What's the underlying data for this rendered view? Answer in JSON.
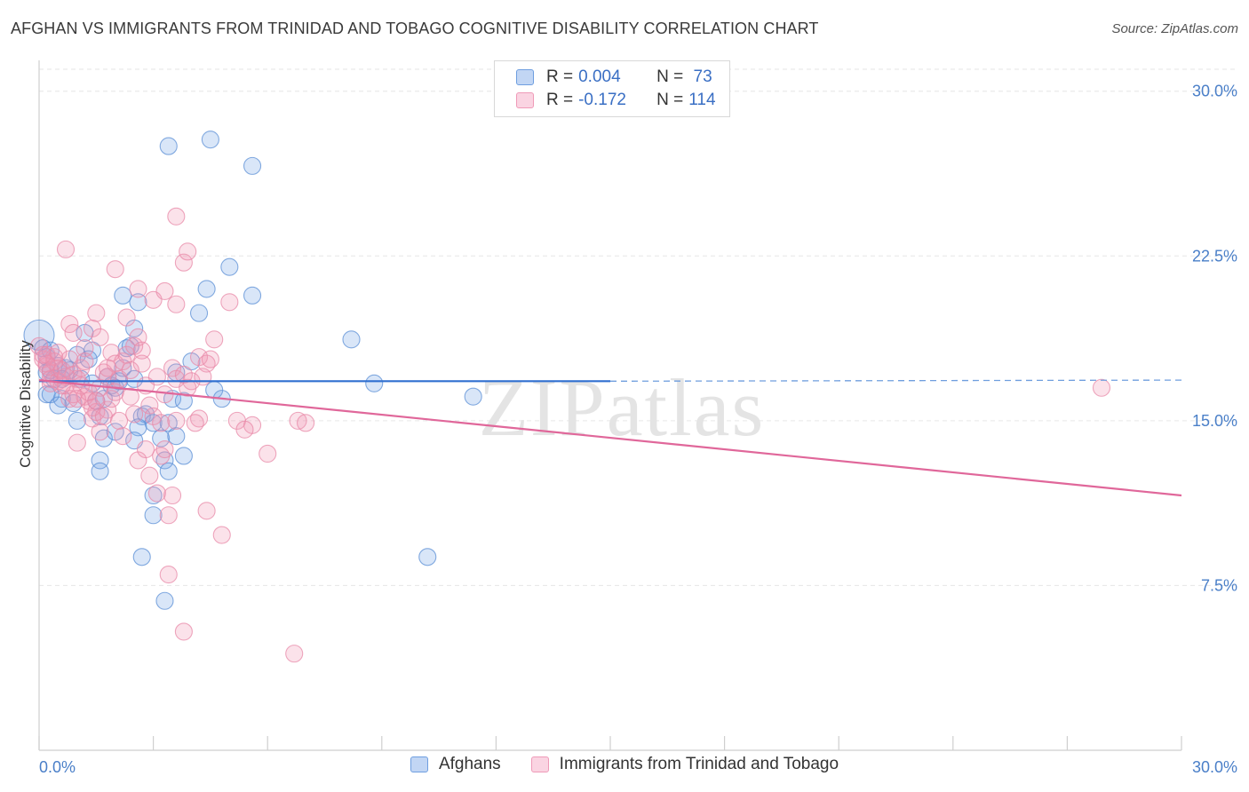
{
  "title": "AFGHAN VS IMMIGRANTS FROM TRINIDAD AND TOBAGO COGNITIVE DISABILITY CORRELATION CHART",
  "source": "Source: ZipAtlas.com",
  "watermark": "ZIPatlas",
  "legend_stats": [
    {
      "r_label": "R = ",
      "r_value": "0.004",
      "n_label": "N = ",
      "n_value": " 73",
      "color": "#5b8fd6"
    },
    {
      "r_label": "R = ",
      "r_value": "-0.172",
      "n_label": "N = ",
      "n_value": "114",
      "color": "#e889a8"
    }
  ],
  "chart_data": {
    "type": "scatter",
    "title": "AFGHAN VS IMMIGRANTS FROM TRINIDAD AND TOBAGO COGNITIVE DISABILITY CORRELATION CHART",
    "xlabel": "",
    "ylabel": "Cognitive Disability",
    "xlim": [
      0,
      30
    ],
    "ylim": [
      0,
      31
    ],
    "x_tick_labels": [
      "0.0%",
      "30.0%"
    ],
    "y_ticks": [
      {
        "value": 7.5,
        "label": "7.5%"
      },
      {
        "value": 15.0,
        "label": "15.0%"
      },
      {
        "value": 22.5,
        "label": "22.5%"
      },
      {
        "value": 30.0,
        "label": "30.0%"
      }
    ],
    "grid": "horizontal-dashed",
    "legend": "top-center",
    "series": [
      {
        "name": "Afghans",
        "color": "#5b8fd6",
        "fill": "rgba(120,165,230,0.28)",
        "trend": {
          "x0": 0.0,
          "y0": 16.8,
          "x1": 15.0,
          "y1": 16.8,
          "dashed_to_x": 30.0,
          "dashed_y": 16.85
        },
        "points": [
          [
            0.0,
            18.9
          ],
          [
            0.1,
            18.3
          ],
          [
            0.2,
            17.9
          ],
          [
            0.3,
            18.2
          ],
          [
            0.2,
            17.2
          ],
          [
            0.4,
            16.9
          ],
          [
            0.3,
            17.3
          ],
          [
            0.5,
            17.5
          ],
          [
            0.2,
            16.2
          ],
          [
            0.6,
            16.0
          ],
          [
            0.5,
            15.7
          ],
          [
            0.8,
            17.3
          ],
          [
            0.7,
            17.4
          ],
          [
            1.0,
            18.0
          ],
          [
            1.2,
            19.0
          ],
          [
            1.4,
            18.2
          ],
          [
            1.3,
            17.8
          ],
          [
            1.1,
            16.9
          ],
          [
            0.9,
            15.8
          ],
          [
            1.0,
            15.0
          ],
          [
            1.5,
            15.9
          ],
          [
            1.6,
            15.2
          ],
          [
            1.7,
            16.0
          ],
          [
            1.8,
            17.0
          ],
          [
            1.9,
            16.6
          ],
          [
            2.0,
            16.5
          ],
          [
            2.1,
            16.8
          ],
          [
            2.2,
            17.4
          ],
          [
            2.3,
            18.3
          ],
          [
            2.4,
            18.4
          ],
          [
            2.5,
            19.2
          ],
          [
            2.6,
            20.4
          ],
          [
            2.2,
            20.7
          ],
          [
            2.5,
            16.9
          ],
          [
            2.7,
            15.2
          ],
          [
            2.8,
            15.3
          ],
          [
            3.0,
            14.9
          ],
          [
            2.6,
            14.7
          ],
          [
            3.2,
            14.2
          ],
          [
            3.4,
            14.9
          ],
          [
            3.5,
            16.0
          ],
          [
            3.6,
            17.2
          ],
          [
            3.8,
            15.9
          ],
          [
            4.0,
            17.7
          ],
          [
            4.2,
            19.9
          ],
          [
            4.4,
            21.0
          ],
          [
            4.6,
            16.4
          ],
          [
            4.8,
            16.0
          ],
          [
            5.0,
            22.0
          ],
          [
            5.6,
            20.7
          ],
          [
            3.4,
            27.5
          ],
          [
            4.5,
            27.8
          ],
          [
            5.6,
            26.6
          ],
          [
            8.2,
            18.7
          ],
          [
            8.8,
            16.7
          ],
          [
            11.4,
            16.1
          ],
          [
            10.2,
            8.8
          ],
          [
            3.3,
            13.2
          ],
          [
            3.0,
            11.6
          ],
          [
            3.0,
            10.7
          ],
          [
            3.4,
            12.7
          ],
          [
            2.7,
            8.8
          ],
          [
            3.3,
            6.8
          ],
          [
            1.6,
            13.2
          ],
          [
            1.6,
            12.7
          ],
          [
            1.7,
            14.2
          ],
          [
            2.5,
            14.1
          ],
          [
            3.8,
            13.4
          ],
          [
            3.6,
            14.3
          ],
          [
            0.3,
            16.2
          ],
          [
            0.6,
            16.9
          ],
          [
            1.4,
            16.7
          ],
          [
            2.0,
            14.5
          ]
        ]
      },
      {
        "name": "Immigrants from Trinidad and Tobago",
        "color": "#e889a8",
        "fill": "rgba(240,150,180,0.28)",
        "trend": {
          "x0": 0.0,
          "y0": 16.85,
          "x1": 30.0,
          "y1": 11.6
        },
        "points": [
          [
            0.0,
            18.4
          ],
          [
            0.1,
            17.8
          ],
          [
            0.2,
            17.5
          ],
          [
            0.2,
            18.0
          ],
          [
            0.3,
            17.2
          ],
          [
            0.4,
            17.9
          ],
          [
            0.3,
            16.9
          ],
          [
            0.5,
            17.4
          ],
          [
            0.5,
            16.8
          ],
          [
            0.6,
            17.3
          ],
          [
            0.7,
            16.6
          ],
          [
            0.8,
            17.8
          ],
          [
            0.9,
            17.1
          ],
          [
            0.8,
            16.0
          ],
          [
            1.0,
            16.9
          ],
          [
            1.1,
            17.4
          ],
          [
            1.2,
            16.1
          ],
          [
            1.3,
            15.9
          ],
          [
            1.4,
            15.1
          ],
          [
            1.5,
            15.4
          ],
          [
            1.6,
            16.5
          ],
          [
            1.7,
            17.2
          ],
          [
            1.8,
            17.0
          ],
          [
            1.9,
            18.1
          ],
          [
            2.0,
            17.6
          ],
          [
            2.1,
            16.9
          ],
          [
            2.2,
            17.7
          ],
          [
            2.3,
            18.0
          ],
          [
            2.5,
            18.4
          ],
          [
            2.6,
            18.8
          ],
          [
            2.7,
            17.6
          ],
          [
            2.8,
            16.6
          ],
          [
            2.9,
            15.7
          ],
          [
            3.0,
            15.2
          ],
          [
            3.2,
            14.9
          ],
          [
            3.3,
            16.2
          ],
          [
            3.5,
            17.4
          ],
          [
            3.6,
            16.9
          ],
          [
            3.8,
            17.1
          ],
          [
            4.0,
            16.8
          ],
          [
            4.2,
            17.9
          ],
          [
            4.4,
            17.6
          ],
          [
            4.6,
            18.7
          ],
          [
            5.0,
            20.4
          ],
          [
            5.2,
            15.0
          ],
          [
            5.6,
            14.8
          ],
          [
            6.0,
            13.5
          ],
          [
            6.8,
            15.0
          ],
          [
            7.0,
            14.9
          ],
          [
            4.3,
            17.0
          ],
          [
            0.7,
            22.8
          ],
          [
            2.0,
            21.9
          ],
          [
            2.6,
            21.0
          ],
          [
            3.0,
            20.5
          ],
          [
            3.3,
            20.9
          ],
          [
            3.6,
            20.3
          ],
          [
            3.8,
            22.2
          ],
          [
            3.6,
            24.3
          ],
          [
            3.9,
            22.7
          ],
          [
            2.3,
            19.7
          ],
          [
            1.5,
            19.9
          ],
          [
            1.4,
            19.2
          ],
          [
            1.6,
            18.8
          ],
          [
            0.8,
            19.4
          ],
          [
            0.9,
            19.0
          ],
          [
            1.2,
            18.3
          ],
          [
            1.0,
            14.0
          ],
          [
            1.4,
            15.6
          ],
          [
            1.6,
            14.5
          ],
          [
            2.2,
            14.3
          ],
          [
            2.5,
            15.3
          ],
          [
            2.6,
            13.2
          ],
          [
            2.8,
            13.7
          ],
          [
            2.9,
            12.5
          ],
          [
            3.1,
            11.7
          ],
          [
            3.2,
            13.4
          ],
          [
            3.3,
            13.7
          ],
          [
            3.5,
            11.6
          ],
          [
            3.4,
            10.7
          ],
          [
            3.4,
            8.0
          ],
          [
            3.8,
            5.4
          ],
          [
            4.4,
            10.9
          ],
          [
            4.8,
            9.8
          ],
          [
            5.4,
            14.6
          ],
          [
            6.7,
            4.4
          ],
          [
            3.6,
            15.0
          ],
          [
            4.2,
            15.1
          ],
          [
            4.5,
            17.8
          ],
          [
            2.4,
            16.1
          ],
          [
            1.8,
            15.5
          ],
          [
            1.9,
            16.0
          ],
          [
            1.7,
            15.2
          ],
          [
            1.3,
            16.3
          ],
          [
            1.1,
            16.6
          ],
          [
            0.9,
            16.2
          ],
          [
            0.6,
            16.6
          ],
          [
            0.4,
            17.7
          ],
          [
            0.2,
            17.6
          ],
          [
            0.1,
            18.0
          ],
          [
            0.3,
            16.7
          ],
          [
            27.9,
            16.5
          ],
          [
            2.1,
            15.0
          ],
          [
            2.4,
            17.3
          ],
          [
            3.1,
            17.0
          ],
          [
            1.8,
            17.4
          ],
          [
            0.7,
            17.0
          ],
          [
            0.5,
            18.1
          ],
          [
            1.2,
            17.7
          ],
          [
            2.7,
            18.2
          ],
          [
            3.9,
            16.5
          ],
          [
            4.1,
            14.9
          ],
          [
            2.0,
            16.3
          ],
          [
            1.5,
            15.9
          ],
          [
            1.0,
            16.0
          ]
        ]
      }
    ]
  }
}
